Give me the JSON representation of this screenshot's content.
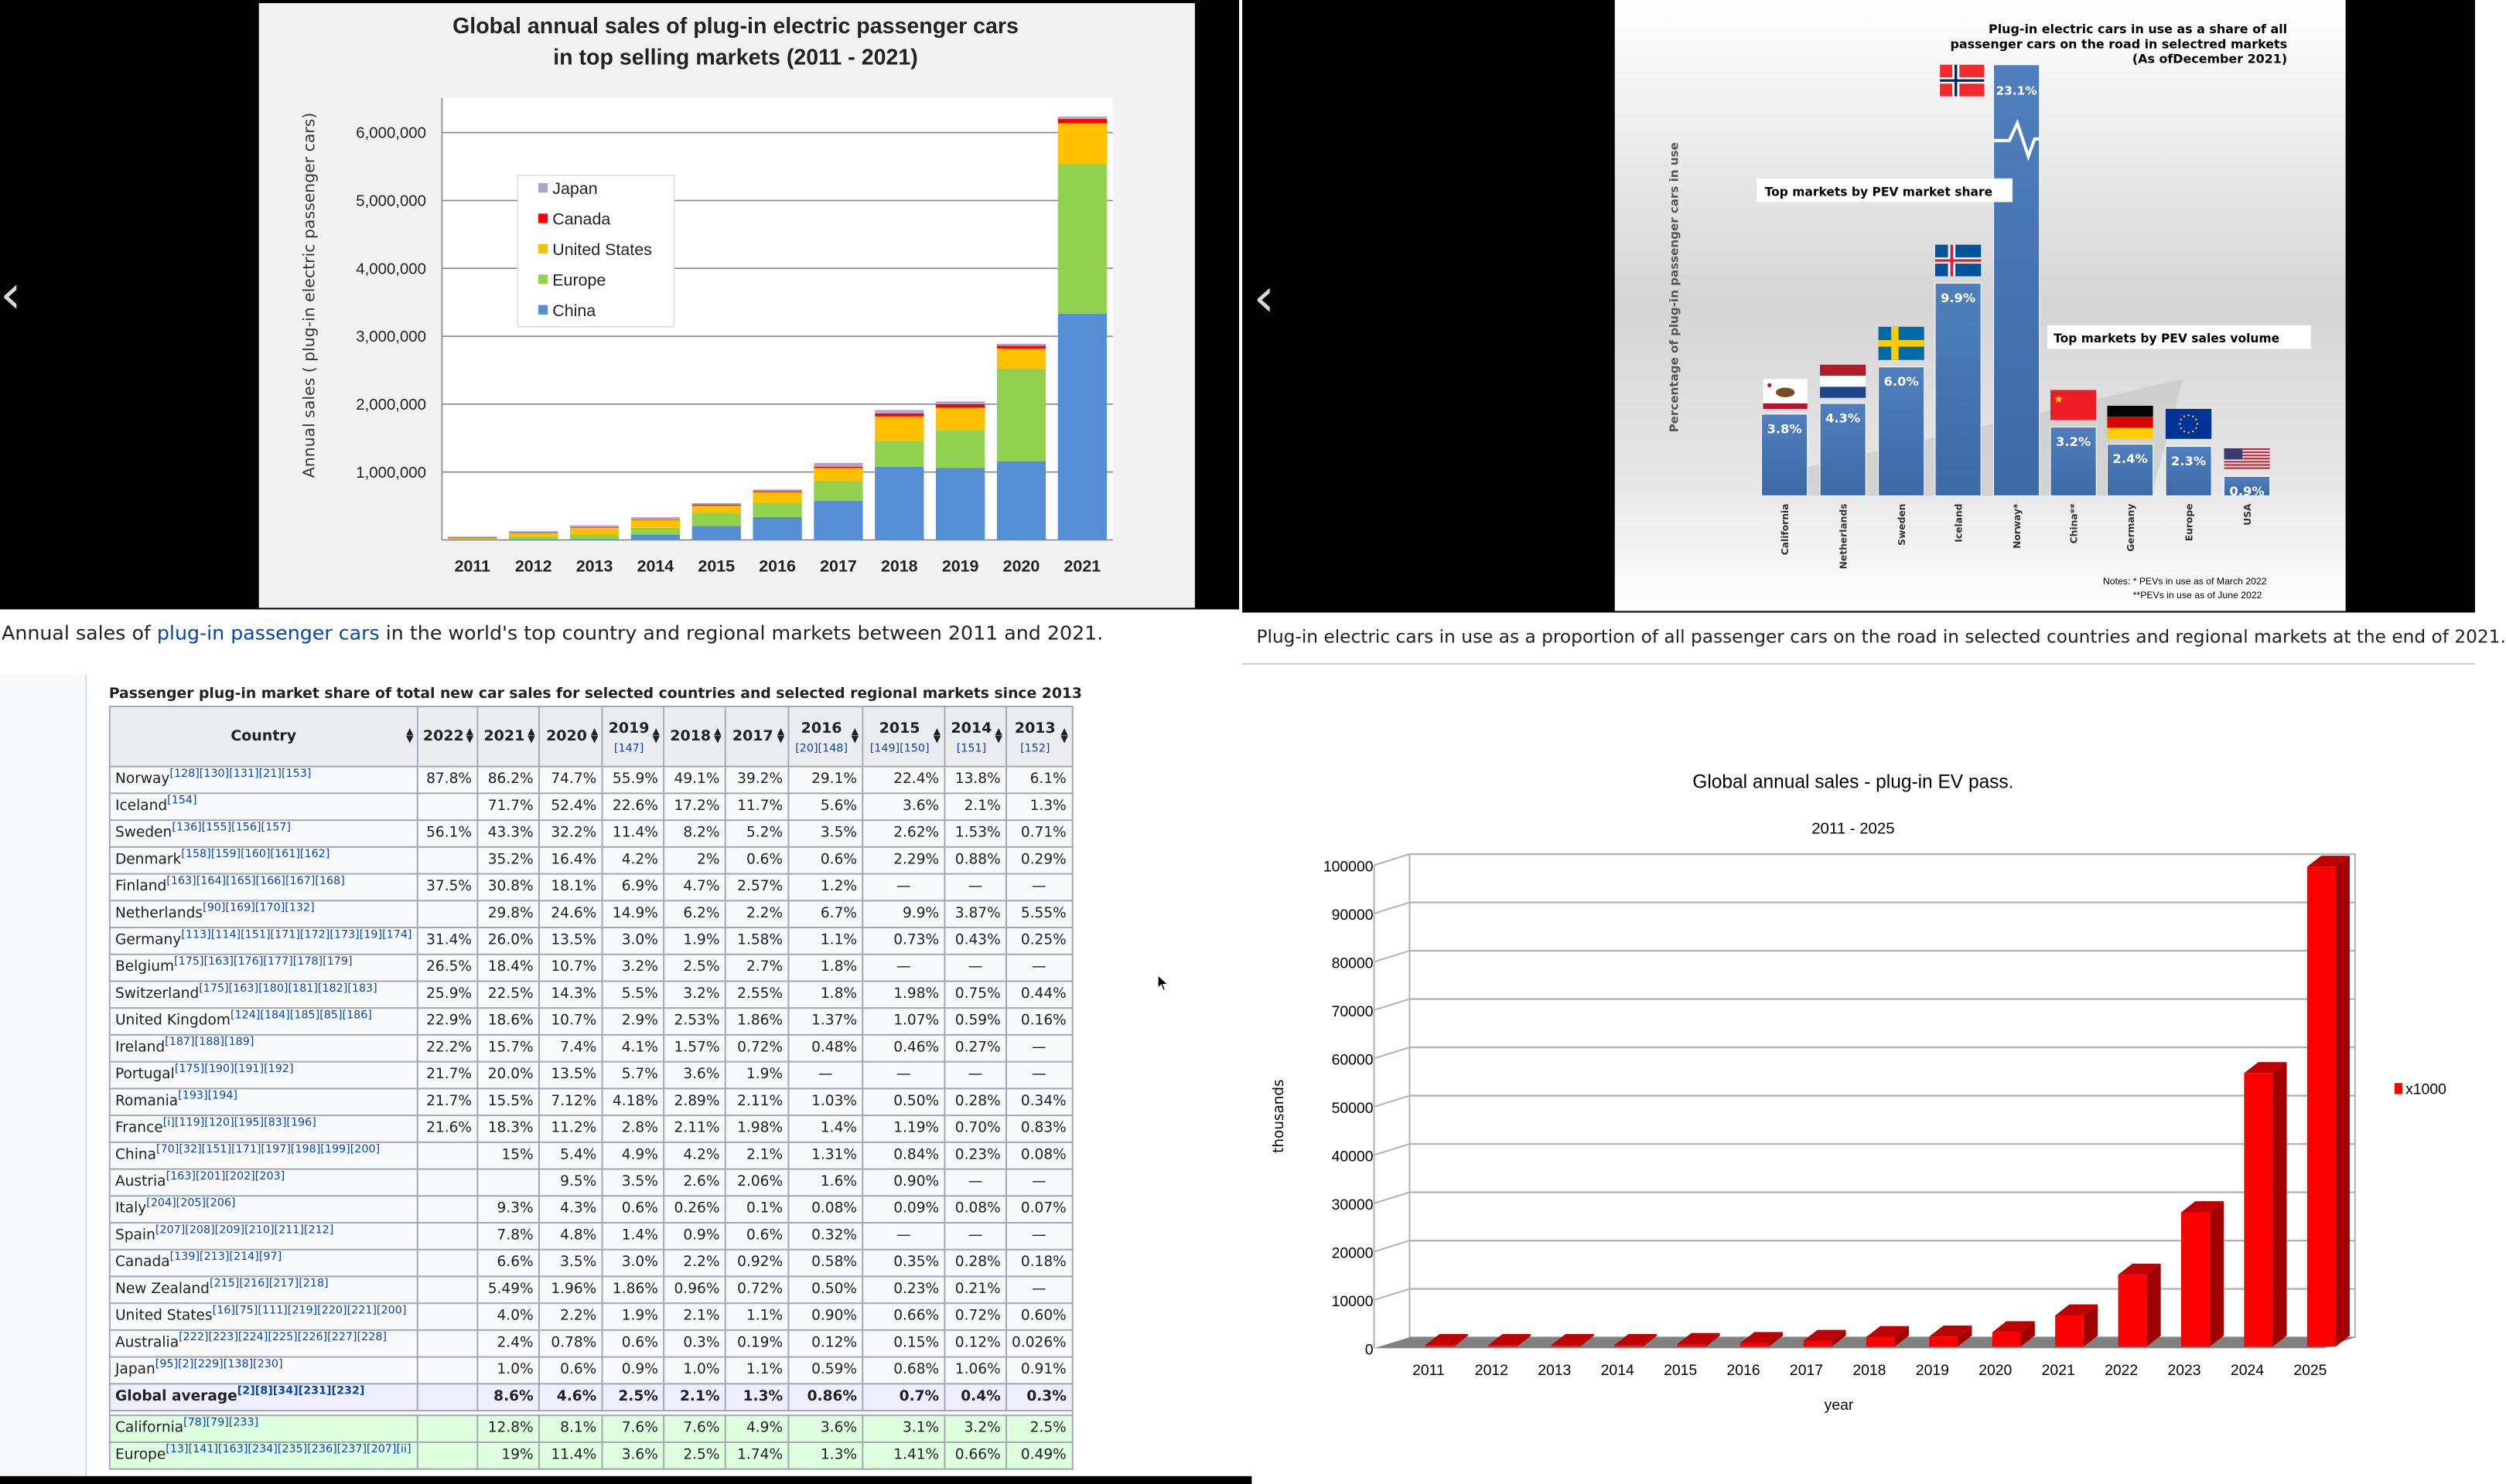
{
  "left_panel": {
    "caption": {
      "before": "Annual sales of ",
      "link": "plug-in passenger cars",
      "after": " in the world's top country and regional markets between 2011 and 2021."
    },
    "prev_icon": "chevron-left-icon"
  },
  "right_panel": {
    "caption": {
      "text": "Plug-in electric cars in use as a proportion of all passenger cars on the road in selected countries and regional markets at the end of 2021."
    },
    "prev_icon": "chevron-left-icon"
  },
  "chart_data": [
    {
      "type": "bar",
      "stacked": true,
      "title": "Global annual sales of plug-in electric passenger cars in top selling markets (2011 - 2021)",
      "title_lines": [
        "Global annual sales of plug-in electric passenger cars",
        "in top selling markets (2011 - 2021)"
      ],
      "ylabel": "Annual sales ( plug-in electric passenger cars)",
      "ylim": [
        0,
        6500000
      ],
      "yticks": [
        "1,000,000",
        "2,000,000",
        "3,000,000",
        "4,000,000",
        "5,000,000",
        "6,000,000"
      ],
      "ytick_values": [
        1000000,
        2000000,
        3000000,
        4000000,
        5000000,
        6000000
      ],
      "grid": true,
      "legend_position": "upper-left inside",
      "categories": [
        "2011",
        "2012",
        "2013",
        "2014",
        "2015",
        "2016",
        "2017",
        "2018",
        "2019",
        "2020",
        "2021"
      ],
      "series": [
        {
          "name": "China",
          "color": "#558ed5",
          "values": [
            5000,
            10000,
            15000,
            75000,
            205000,
            336000,
            579000,
            1080000,
            1060000,
            1160000,
            3334000
          ]
        },
        {
          "name": "Europe",
          "color": "#92d050",
          "values": [
            12000,
            40000,
            70000,
            105000,
            195000,
            212000,
            287000,
            380000,
            560000,
            1365000,
            2200000
          ]
        },
        {
          "name": "United States",
          "color": "#ffc000",
          "values": [
            18000,
            53000,
            97000,
            120000,
            105000,
            158000,
            195000,
            360000,
            330000,
            295000,
            605000
          ]
        },
        {
          "name": "Canada",
          "color": "#ff0000",
          "values": [
            500,
            2500,
            3000,
            5000,
            17000,
            12000,
            17000,
            44000,
            50000,
            40000,
            62000
          ]
        },
        {
          "name": "Japan",
          "color": "#b3a2c7",
          "values": [
            13000,
            25000,
            30000,
            30000,
            20000,
            25000,
            55000,
            50000,
            40000,
            30000,
            35000
          ]
        }
      ],
      "legend_order": [
        "Japan",
        "Canada",
        "United States",
        "Europe",
        "China"
      ]
    },
    {
      "type": "bar",
      "title_lines": [
        "Plug-in electric cars in use as a share of all",
        "passenger cars on the road in selectred markets",
        "(As ofDecember 2021)"
      ],
      "ylabel": "Percentage of plug-in passenger cars  in use",
      "categories": [
        "California",
        "Netherlands",
        "Sweden",
        "Iceland",
        "Norway*",
        "China**",
        "Germany",
        "Europe",
        "USA"
      ],
      "values": [
        3.8,
        4.3,
        6.0,
        9.9,
        23.1,
        3.2,
        2.4,
        2.3,
        0.9
      ],
      "data_labels": [
        "3.8%",
        "4.3%",
        "6.0%",
        "9.9%",
        "23.1%",
        "3.2%",
        "2.4%",
        "2.3%",
        "0.9%"
      ],
      "broken_axis_category": "Norway*",
      "bar_color": "#4a76b4",
      "annotations": [
        "Top markets by PEV market share",
        "Top markets by PEV sales volume"
      ],
      "notes": [
        "Notes:  * PEVs in use as of March 2022",
        "**PEVs in use as of June 2022"
      ],
      "grid": false
    },
    {
      "type": "bar",
      "style": "3d",
      "title": "Global annual sales - plug-in EV pass.",
      "subtitle": "2011 - 2025",
      "xlabel": "year",
      "ylabel": "thousands",
      "ylim": [
        0,
        100000
      ],
      "yticks": [
        "0",
        "10000",
        "20000",
        "30000",
        "40000",
        "50000",
        "60000",
        "70000",
        "80000",
        "90000",
        "100000"
      ],
      "grid": true,
      "legend_position": "right",
      "categories": [
        "2011",
        "2012",
        "2013",
        "2014",
        "2015",
        "2016",
        "2017",
        "2018",
        "2019",
        "2020",
        "2021",
        "2022",
        "2023",
        "2024",
        "2025"
      ],
      "series": [
        {
          "name": "x1000",
          "color": "#ff0000",
          "values": [
            50,
            130,
            210,
            320,
            550,
            750,
            1200,
            2000,
            2100,
            3000,
            6500,
            15000,
            28000,
            57000,
            100000
          ]
        }
      ]
    }
  ],
  "table": {
    "title": "Passenger plug-in market share of total new car sales for selected countries and selected regional markets since 2013",
    "columns": [
      {
        "label": "Country",
        "ref": ""
      },
      {
        "label": "2022",
        "ref": ""
      },
      {
        "label": "2021",
        "ref": ""
      },
      {
        "label": "2020",
        "ref": ""
      },
      {
        "label": "2019",
        "ref": "[147]"
      },
      {
        "label": "2018",
        "ref": ""
      },
      {
        "label": "2017",
        "ref": ""
      },
      {
        "label": "2016",
        "ref": "[20][148]"
      },
      {
        "label": "2015",
        "ref": "[149][150]"
      },
      {
        "label": "2014",
        "ref": "[151]"
      },
      {
        "label": "2013",
        "ref": "[152]"
      }
    ],
    "rows": [
      {
        "country": "Norway",
        "refs": "[128][130][131][21][153]",
        "values": [
          "87.8%",
          "86.2%",
          "74.7%",
          "55.9%",
          "49.1%",
          "39.2%",
          "29.1%",
          "22.4%",
          "13.8%",
          "6.1%"
        ]
      },
      {
        "country": "Iceland",
        "refs": "[154]",
        "values": [
          "",
          "71.7%",
          "52.4%",
          "22.6%",
          "17.2%",
          "11.7%",
          "5.6%",
          "3.6%",
          "2.1%",
          "1.3%"
        ]
      },
      {
        "country": "Sweden",
        "refs": "[136][155][156][157]",
        "values": [
          "56.1%",
          "43.3%",
          "32.2%",
          "11.4%",
          "8.2%",
          "5.2%",
          "3.5%",
          "2.62%",
          "1.53%",
          "0.71%"
        ]
      },
      {
        "country": "Denmark",
        "refs": "[158][159][160][161][162]",
        "values": [
          "",
          "35.2%",
          "16.4%",
          "4.2%",
          "2%",
          "0.6%",
          "0.6%",
          "2.29%",
          "0.88%",
          "0.29%"
        ]
      },
      {
        "country": "Finland",
        "refs": "[163][164][165][166][167][168]",
        "values": [
          "37.5%",
          "30.8%",
          "18.1%",
          "6.9%",
          "4.7%",
          "2.57%",
          "1.2%",
          "—",
          "—",
          "—"
        ]
      },
      {
        "country": "Netherlands",
        "refs": "[90][169][170][132]",
        "values": [
          "",
          "29.8%",
          "24.6%",
          "14.9%",
          "6.2%",
          "2.2%",
          "6.7%",
          "9.9%",
          "3.87%",
          "5.55%"
        ]
      },
      {
        "country": "Germany",
        "refs": "[113][114][151][171][172][173][19][174]",
        "values": [
          "31.4%",
          "26.0%",
          "13.5%",
          "3.0%",
          "1.9%",
          "1.58%",
          "1.1%",
          "0.73%",
          "0.43%",
          "0.25%"
        ]
      },
      {
        "country": "Belgium",
        "refs": "[175][163][176][177][178][179]",
        "values": [
          "26.5%",
          "18.4%",
          "10.7%",
          "3.2%",
          "2.5%",
          "2.7%",
          "1.8%",
          "—",
          "—",
          "—"
        ]
      },
      {
        "country": "Switzerland",
        "refs": "[175][163][180][181][182][183]",
        "values": [
          "25.9%",
          "22.5%",
          "14.3%",
          "5.5%",
          "3.2%",
          "2.55%",
          "1.8%",
          "1.98%",
          "0.75%",
          "0.44%"
        ]
      },
      {
        "country": "United Kingdom",
        "refs": "[124][184][185][85][186]",
        "values": [
          "22.9%",
          "18.6%",
          "10.7%",
          "2.9%",
          "2.53%",
          "1.86%",
          "1.37%",
          "1.07%",
          "0.59%",
          "0.16%"
        ]
      },
      {
        "country": "Ireland",
        "refs": "[187][188][189]",
        "values": [
          "22.2%",
          "15.7%",
          "7.4%",
          "4.1%",
          "1.57%",
          "0.72%",
          "0.48%",
          "0.46%",
          "0.27%",
          "—"
        ]
      },
      {
        "country": "Portugal",
        "refs": "[175][190][191][192]",
        "values": [
          "21.7%",
          "20.0%",
          "13.5%",
          "5.7%",
          "3.6%",
          "1.9%",
          "—",
          "—",
          "—",
          "—"
        ]
      },
      {
        "country": "Romania",
        "refs": "[193][194]",
        "values": [
          "21.7%",
          "15.5%",
          "7.12%",
          "4.18%",
          "2.89%",
          "2.11%",
          "1.03%",
          "0.50%",
          "0.28%",
          "0.34%"
        ]
      },
      {
        "country": "France",
        "refs": "[i][119][120][195][83][196]",
        "values": [
          "21.6%",
          "18.3%",
          "11.2%",
          "2.8%",
          "2.11%",
          "1.98%",
          "1.4%",
          "1.19%",
          "0.70%",
          "0.83%"
        ]
      },
      {
        "country": "China",
        "refs": "[70][32][151][171][197][198][199][200]",
        "values": [
          "",
          "15%",
          "5.4%",
          "4.9%",
          "4.2%",
          "2.1%",
          "1.31%",
          "0.84%",
          "0.23%",
          "0.08%"
        ]
      },
      {
        "country": "Austria",
        "refs": "[163][201][202][203]",
        "values": [
          "",
          "",
          "9.5%",
          "3.5%",
          "2.6%",
          "2.06%",
          "1.6%",
          "0.90%",
          "—",
          "—"
        ]
      },
      {
        "country": "Italy",
        "refs": "[204][205][206]",
        "values": [
          "",
          "9.3%",
          "4.3%",
          "0.6%",
          "0.26%",
          "0.1%",
          "0.08%",
          "0.09%",
          "0.08%",
          "0.07%"
        ]
      },
      {
        "country": "Spain",
        "refs": "[207][208][209][210][211][212]",
        "values": [
          "",
          "7.8%",
          "4.8%",
          "1.4%",
          "0.9%",
          "0.6%",
          "0.32%",
          "—",
          "—",
          "—"
        ]
      },
      {
        "country": "Canada",
        "refs": "[139][213][214][97]",
        "values": [
          "",
          "6.6%",
          "3.5%",
          "3.0%",
          "2.2%",
          "0.92%",
          "0.58%",
          "0.35%",
          "0.28%",
          "0.18%"
        ]
      },
      {
        "country": "New Zealand",
        "refs": "[215][216][217][218]",
        "values": [
          "",
          "5.49%",
          "1.96%",
          "1.86%",
          "0.96%",
          "0.72%",
          "0.50%",
          "0.23%",
          "0.21%",
          "—"
        ]
      },
      {
        "country": "United States",
        "refs": "[16][75][111][219][220][221][200]",
        "values": [
          "",
          "4.0%",
          "2.2%",
          "1.9%",
          "2.1%",
          "1.1%",
          "0.90%",
          "0.66%",
          "0.72%",
          "0.60%"
        ]
      },
      {
        "country": "Australia",
        "refs": "[222][223][224][225][226][227][228]",
        "values": [
          "",
          "2.4%",
          "0.78%",
          "0.6%",
          "0.3%",
          "0.19%",
          "0.12%",
          "0.15%",
          "0.12%",
          "0.026%"
        ]
      },
      {
        "country": "Japan",
        "refs": "[95][2][229][138][230]",
        "values": [
          "",
          "1.0%",
          "0.6%",
          "0.9%",
          "1.0%",
          "1.1%",
          "0.59%",
          "0.68%",
          "1.06%",
          "0.91%"
        ]
      }
    ],
    "average_row": {
      "country": "Global average",
      "refs": "[2][8][34][231][232]",
      "values": [
        "",
        "8.6%",
        "4.6%",
        "2.5%",
        "2.1%",
        "1.3%",
        "0.86%",
        "0.7%",
        "0.4%",
        "0.3%"
      ]
    },
    "regional_rows": [
      {
        "country": "California",
        "refs": "[78][79][233]",
        "values": [
          "",
          "12.8%",
          "8.1%",
          "7.6%",
          "7.6%",
          "4.9%",
          "3.6%",
          "3.1%",
          "3.2%",
          "2.5%"
        ]
      },
      {
        "country": "Europe",
        "refs": "[13][141][163][234][235][236][237][207][ii]",
        "values": [
          "",
          "19%",
          "11.4%",
          "3.6%",
          "2.5%",
          "1.74%",
          "1.3%",
          "1.41%",
          "0.66%",
          "0.49%"
        ]
      }
    ]
  }
}
